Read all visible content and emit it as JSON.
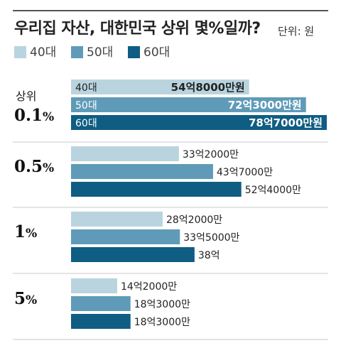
{
  "title": "우리집 자산, 대한민국 상위 몇%일까?",
  "unit_label": "단위: 원",
  "colors": {
    "40대": "#b9d4df",
    "50대": "#5f9bb8",
    "60대": "#0f5d83",
    "separator": "#c8c8c8",
    "rule": "#555555"
  },
  "legend": [
    {
      "label": "40대",
      "color": "#b9d4df"
    },
    {
      "label": "50대",
      "color": "#5f9bb8"
    },
    {
      "label": "60대",
      "color": "#0f5d83"
    }
  ],
  "chart_data": {
    "type": "bar",
    "orientation": "horizontal",
    "unit": "만원",
    "categories": [
      "상위 0.1%",
      "0.5%",
      "1%",
      "5%"
    ],
    "category_display": [
      {
        "sub": "상위",
        "main": "0.1",
        "pct": "%"
      },
      {
        "sub": "",
        "main": "0.5",
        "pct": "%"
      },
      {
        "sub": "",
        "main": "1",
        "pct": "%"
      },
      {
        "sub": "",
        "main": "5",
        "pct": "%"
      }
    ],
    "series": [
      {
        "name": "40대",
        "values": [
          548000,
          332000,
          282000,
          142000
        ],
        "labels": [
          "54억8000만원",
          "33억2000만",
          "28억2000만",
          "14억2000만"
        ]
      },
      {
        "name": "50대",
        "values": [
          723000,
          437000,
          335000,
          183000
        ],
        "labels": [
          "72억3000만원",
          "43억7000만",
          "33억5000만",
          "18억3000만"
        ]
      },
      {
        "name": "60대",
        "values": [
          787000,
          524000,
          380000,
          183000
        ],
        "labels": [
          "78억7000만원",
          "52억4000만",
          "38억",
          "18억3000만"
        ]
      }
    ],
    "in_bar_series_labels_group": 0,
    "xlim": [
      0,
      787000
    ],
    "grid": false,
    "legend_position": "top-left"
  }
}
